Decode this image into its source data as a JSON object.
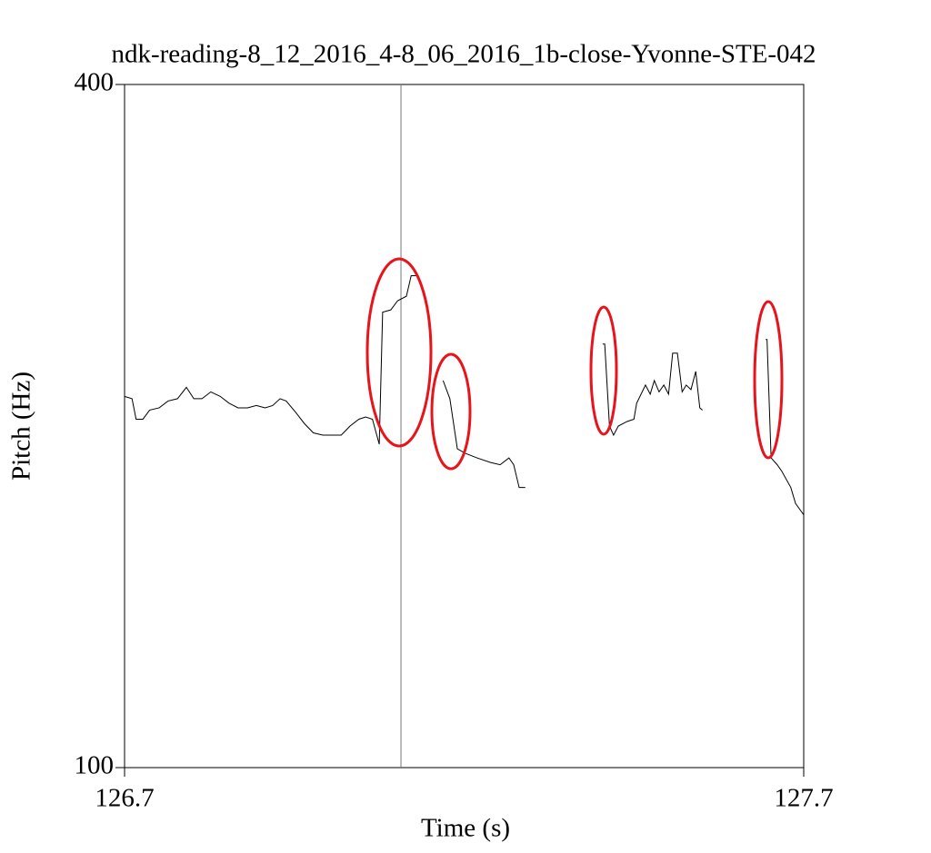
{
  "chart_data": {
    "type": "line",
    "title": "ndk-reading-8_12_2016_4-8_06_2016_1b-close-Yvonne-STE-042",
    "x_label": "Time (s)",
    "y_label": "Pitch (Hz)",
    "xlim": [
      126.7,
      127.7
    ],
    "xticks": [
      126.7,
      127.7
    ],
    "ylim": [
      100,
      400
    ],
    "yticks": [
      100,
      400
    ],
    "cursor_x": 127.107,
    "series": [
      {
        "color": "#000000",
        "x": [
          126.7,
          126.711,
          126.717,
          126.727,
          126.737,
          126.751,
          126.764,
          126.778,
          126.791,
          126.802,
          126.814,
          126.827,
          126.841,
          126.854,
          126.867,
          126.881,
          126.894,
          126.907,
          126.918,
          126.929,
          126.938,
          126.952,
          126.965,
          126.978,
          126.992,
          127.005,
          127.019,
          127.032,
          127.045,
          127.055,
          127.065,
          127.075,
          127.08,
          127.092,
          127.102,
          127.115,
          127.122,
          127.13,
          null,
          127.169,
          127.179,
          127.19,
          127.202,
          127.219,
          127.239,
          127.253,
          127.266,
          127.273,
          127.281,
          127.29,
          null,
          127.404,
          127.407,
          127.414,
          127.42,
          127.427,
          127.44,
          127.45,
          127.454,
          127.467,
          127.474,
          127.48,
          127.487,
          127.494,
          127.501,
          127.507,
          127.514,
          127.521,
          127.527,
          127.534,
          127.541,
          127.547,
          127.551,
          null,
          127.644,
          127.646,
          127.652,
          127.661,
          127.668,
          127.681,
          127.688,
          127.7
        ],
        "values": [
          263,
          262,
          253,
          253,
          257,
          258,
          261,
          262,
          267,
          262,
          262,
          265,
          263,
          260,
          258,
          258,
          259,
          258,
          259,
          262,
          261,
          256,
          251,
          247,
          246,
          246,
          246,
          250,
          253,
          254,
          253,
          242,
          300,
          301,
          305,
          307,
          316,
          316,
          null,
          270,
          262,
          240,
          238,
          236,
          234,
          233,
          236,
          233,
          223,
          223,
          null,
          286,
          286,
          250,
          246,
          250,
          252,
          253,
          260,
          268,
          264,
          270,
          265,
          268,
          264,
          282,
          282,
          265,
          268,
          266,
          274,
          258,
          257,
          null,
          288,
          288,
          236,
          233,
          230,
          223,
          216,
          211
        ]
      }
    ]
  }
}
